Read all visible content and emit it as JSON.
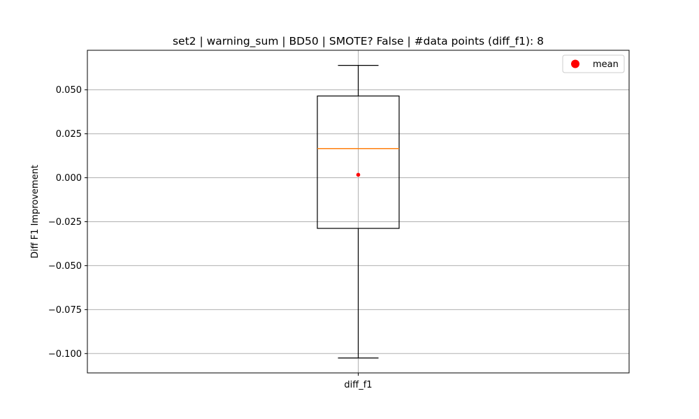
{
  "chart_data": {
    "type": "box",
    "title": "set2 | warning_sum | BD50 | SMOTE? False | #data points (diff_f1): 8",
    "xlabel": "",
    "ylabel": "Diff F1 Improvement",
    "categories": [
      "diff_f1"
    ],
    "ylim": [
      -0.111,
      0.0725
    ],
    "yticks": [
      0.05,
      0.025,
      0.0,
      -0.025,
      -0.05,
      -0.075,
      -0.1
    ],
    "ytick_labels": [
      "0.050",
      "0.025",
      "0.000",
      "−0.025",
      "−0.050",
      "−0.075",
      "−0.100"
    ],
    "grid": true,
    "legend_position": "top-right",
    "legend": [
      {
        "label": "mean",
        "color": "#ff0000",
        "marker": "circle"
      }
    ],
    "boxes": [
      {
        "name": "diff_f1",
        "whisker_low": -0.1025,
        "q1": -0.0288,
        "median": 0.0166,
        "q3": 0.0465,
        "whisker_high": 0.0639,
        "mean": 0.0017,
        "count": 8
      }
    ],
    "colors": {
      "box": "#000000",
      "median": "#ff7f0e",
      "mean": "#ff0000",
      "grid": "#b0b0b0"
    }
  }
}
